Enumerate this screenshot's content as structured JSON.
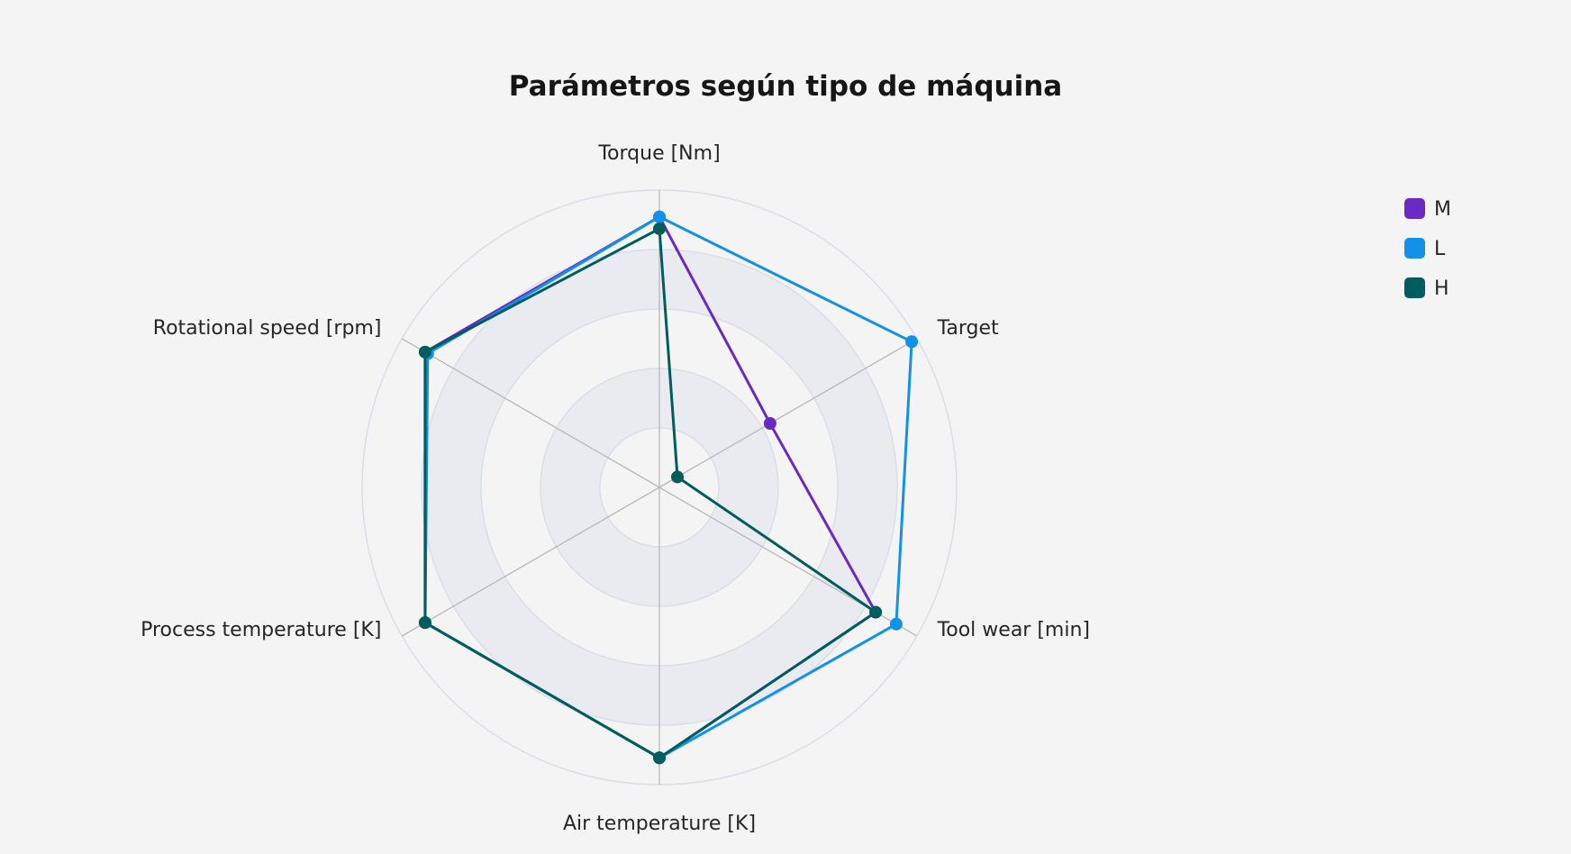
{
  "chart_data": {
    "type": "radar",
    "title": "Parámetros según tipo de máquina",
    "axes": [
      "Torque [Nm]",
      "Target",
      "Tool wear [min]",
      "Air temperature [K]",
      "Process temperature [K]",
      "Rotational speed [rpm]"
    ],
    "rmax": 1.0,
    "ring_count": 5,
    "grid": true,
    "legend_position": "top-right",
    "series": [
      {
        "name": "M",
        "color": "#6929c4",
        "values": [
          0.91,
          0.43,
          0.84,
          0.91,
          0.91,
          0.91
        ]
      },
      {
        "name": "L",
        "color": "#1192e8",
        "values": [
          0.91,
          0.98,
          0.92,
          0.91,
          0.91,
          0.9
        ]
      },
      {
        "name": "H",
        "color": "#005d5d",
        "values": [
          0.87,
          0.07,
          0.84,
          0.91,
          0.91,
          0.91
        ]
      }
    ]
  }
}
